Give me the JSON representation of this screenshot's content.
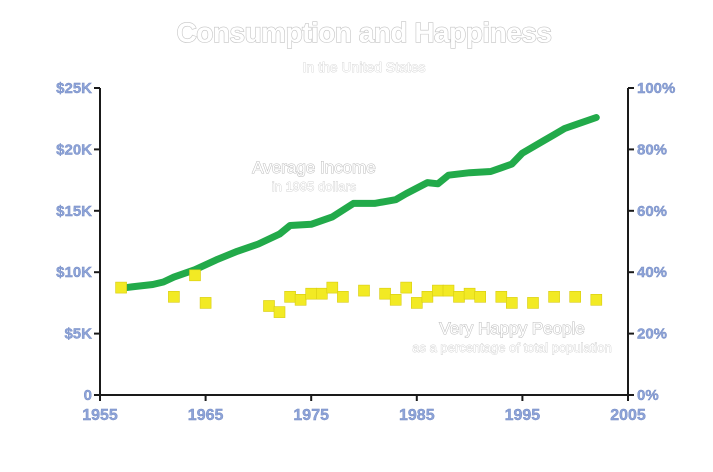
{
  "chart_data": {
    "type": "line",
    "title": "Consumption and Happiness",
    "subtitle": "In the United States",
    "xlim": [
      1955,
      2005
    ],
    "x_ticks": [
      "1955",
      "1965",
      "1975",
      "1985",
      "1995",
      "2005"
    ],
    "y_left": {
      "lim": [
        0,
        25000
      ],
      "ticks": [
        {
          "value": 0,
          "label": "0"
        },
        {
          "value": 5000,
          "label": "$5K"
        },
        {
          "value": 10000,
          "label": "$10K"
        },
        {
          "value": 15000,
          "label": "$15K"
        },
        {
          "value": 20000,
          "label": "$20K"
        },
        {
          "value": 25000,
          "label": "$25K"
        }
      ]
    },
    "y_right": {
      "lim": [
        0,
        100
      ],
      "ticks": [
        {
          "value": 0,
          "label": "0%"
        },
        {
          "value": 20,
          "label": "20%"
        },
        {
          "value": 40,
          "label": "40%"
        },
        {
          "value": 60,
          "label": "60%"
        },
        {
          "value": 80,
          "label": "80%"
        },
        {
          "value": 100,
          "label": "100%"
        }
      ]
    },
    "grid": false,
    "legend": "none",
    "series": [
      {
        "name": "Average Income",
        "sublabel": "in 1995 dollars",
        "type": "line",
        "axis": "left",
        "color": "#22aa4a",
        "points": [
          [
            1957,
            8700
          ],
          [
            1958,
            8800
          ],
          [
            1960,
            9000
          ],
          [
            1961,
            9200
          ],
          [
            1962,
            9600
          ],
          [
            1964,
            10200
          ],
          [
            1966,
            11000
          ],
          [
            1968,
            11700
          ],
          [
            1970,
            12300
          ],
          [
            1972,
            13100
          ],
          [
            1973,
            13800
          ],
          [
            1975,
            13900
          ],
          [
            1977,
            14500
          ],
          [
            1979,
            15600
          ],
          [
            1981,
            15600
          ],
          [
            1983,
            15900
          ],
          [
            1984,
            16400
          ],
          [
            1986,
            17300
          ],
          [
            1987,
            17200
          ],
          [
            1988,
            17900
          ],
          [
            1990,
            18100
          ],
          [
            1992,
            18200
          ],
          [
            1993,
            18500
          ],
          [
            1994,
            18800
          ],
          [
            1995,
            19700
          ],
          [
            1997,
            20700
          ],
          [
            1998,
            21200
          ],
          [
            1999,
            21700
          ],
          [
            2000,
            22000
          ],
          [
            2002,
            22600
          ]
        ]
      },
      {
        "name": "Very Happy People",
        "sublabel": "as a percentage of total population",
        "type": "scatter",
        "axis": "right",
        "color": "#f2ea24",
        "points": [
          [
            1957,
            35
          ],
          [
            1962,
            32
          ],
          [
            1964,
            39
          ],
          [
            1965,
            30
          ],
          [
            1971,
            29
          ],
          [
            1972,
            27
          ],
          [
            1973,
            32
          ],
          [
            1974,
            31
          ],
          [
            1975,
            33
          ],
          [
            1976,
            33
          ],
          [
            1977,
            35
          ],
          [
            1978,
            32
          ],
          [
            1980,
            34
          ],
          [
            1982,
            33
          ],
          [
            1983,
            31
          ],
          [
            1984,
            35
          ],
          [
            1985,
            30
          ],
          [
            1986,
            32
          ],
          [
            1987,
            34
          ],
          [
            1988,
            34
          ],
          [
            1989,
            32
          ],
          [
            1990,
            33
          ],
          [
            1991,
            32
          ],
          [
            1993,
            32
          ],
          [
            1994,
            30
          ],
          [
            1996,
            30
          ],
          [
            1998,
            32
          ],
          [
            2000,
            32
          ],
          [
            2002,
            31
          ]
        ]
      }
    ]
  }
}
